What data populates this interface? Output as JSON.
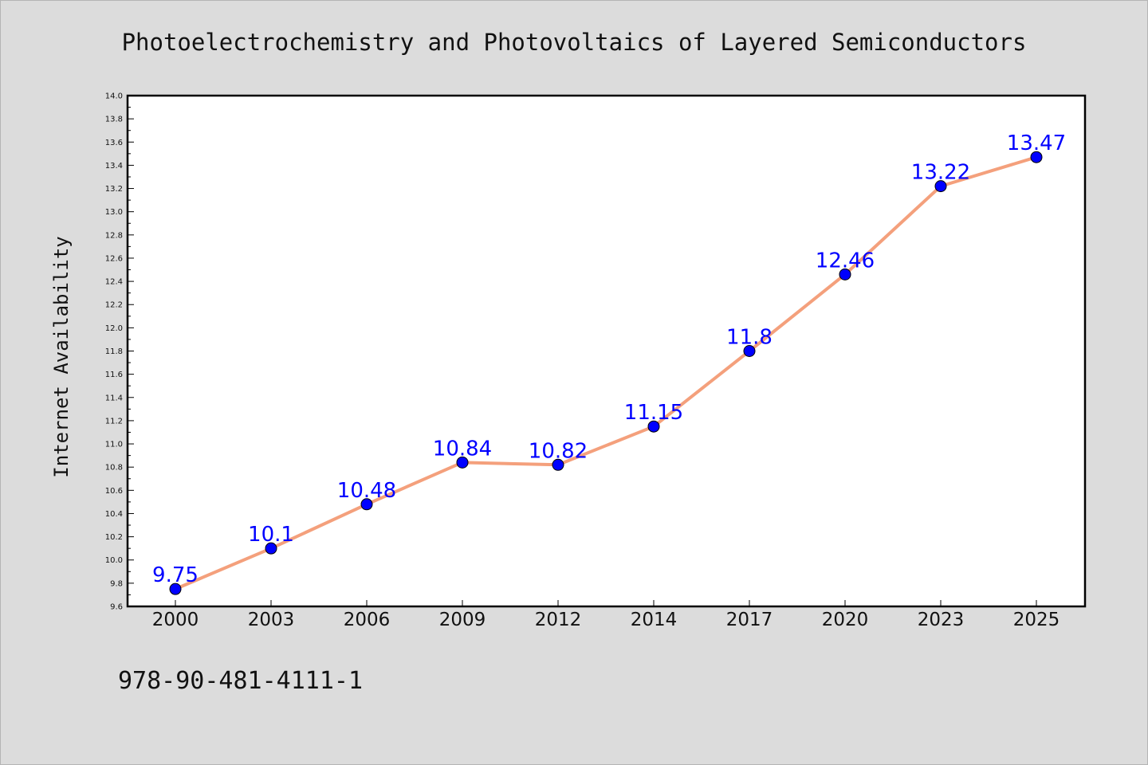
{
  "chart_data": {
    "type": "line",
    "title": "Photoelectrochemistry and Photovoltaics of Layered Semiconductors",
    "xlabel": "",
    "ylabel": "Internet Availability",
    "categories": [
      "2000",
      "2003",
      "2006",
      "2009",
      "2012",
      "2014",
      "2017",
      "2020",
      "2023",
      "2025"
    ],
    "series": [
      {
        "values": [
          9.75,
          10.1,
          10.48,
          10.84,
          10.82,
          11.15,
          11.8,
          12.46,
          13.22,
          13.47
        ],
        "data_labels": [
          "9.75",
          "10.1",
          "10.48",
          "10.84",
          "10.82",
          "11.15",
          "11.8",
          "12.46",
          "13.22",
          "13.47"
        ]
      }
    ],
    "ylim": [
      9.6,
      14.0
    ],
    "yticks": [
      "9.6",
      "9.8",
      "10.0",
      "10.2",
      "10.4",
      "10.6",
      "10.8",
      "11.0",
      "11.2",
      "11.4",
      "11.6",
      "11.8",
      "12.0",
      "12.2",
      "12.4",
      "12.6",
      "12.8",
      "13.0",
      "13.2",
      "13.4",
      "13.6",
      "13.8",
      "14.0"
    ],
    "grid": false,
    "legend": "none",
    "colors": {
      "line": "#f4a07c",
      "marker": "#0000ff",
      "marker_edge": "#000000",
      "data_label": "#0000ff",
      "plot_background": "#ffffff",
      "figure_background": "#dcdcdc"
    }
  },
  "footnote": "978-90-481-4111-1"
}
